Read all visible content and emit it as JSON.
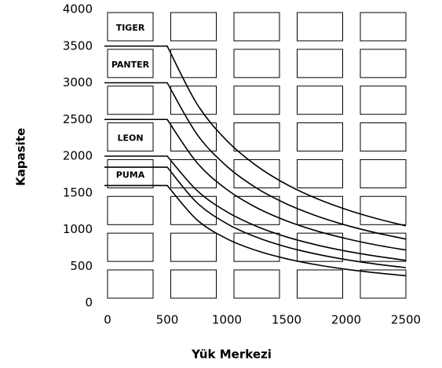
{
  "chart_data": {
    "type": "line",
    "x_label": "Yük Merkezi",
    "y_label": "Kapasite",
    "box_labels": [
      "TIGER",
      "PANTER",
      "LEON",
      "PUMA"
    ],
    "x": [
      0,
      500,
      750,
      1000,
      1250,
      1500,
      1750,
      2000,
      2250,
      2500
    ],
    "series": [
      {
        "color": "#000000",
        "values": [
          3500,
          3500,
          2710,
          2210,
          1867,
          1615,
          1424,
          1273,
          1151,
          1050
        ]
      },
      {
        "color": "#000000",
        "values": [
          3000,
          3000,
          2297,
          1861,
          1564,
          1349,
          1186,
          1058,
          955,
          870
        ]
      },
      {
        "color": "#000000",
        "values": [
          2500,
          2500,
          1910,
          1545,
          1297,
          1118,
          982,
          876,
          790,
          720
        ]
      },
      {
        "color": "#000000",
        "values": [
          2000,
          2000,
          1531,
          1241,
          1043,
          899,
          791,
          705,
          637,
          580
        ]
      },
      {
        "color": "#000000",
        "values": [
          1850,
          1850,
          1364,
          1080,
          894,
          762,
          665,
          589,
          529,
          480
        ]
      },
      {
        "color": "#000000",
        "values": [
          1600,
          1600,
          1131,
          874,
          712,
          601,
          520,
          458,
          410,
          370
        ]
      }
    ],
    "xlim": [
      0,
      2500
    ],
    "xticks": [
      0,
      500,
      1000,
      1500,
      2000,
      2500
    ],
    "ylim": [
      0,
      4000
    ],
    "yticks": [
      0,
      500,
      1000,
      1500,
      2000,
      2500,
      3000,
      3500,
      4000
    ]
  }
}
